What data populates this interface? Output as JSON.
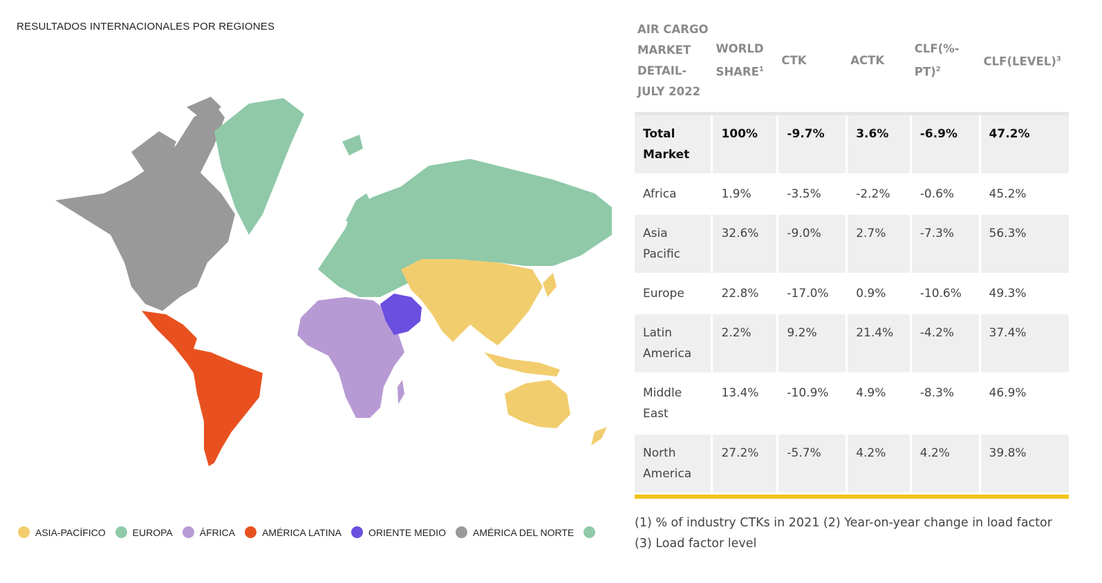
{
  "map": {
    "title": "RESULTADOS INTERNACIONALES POR REGIONES",
    "regions": [
      {
        "name": "ASIA-PACÍFICO",
        "color": "#f2cd6e"
      },
      {
        "name": "EUROPA",
        "color": "#8fc9a8"
      },
      {
        "name": "ÁFRICA",
        "color": "#b79ad4"
      },
      {
        "name": "AMÉRICA LATINA",
        "color": "#e8511f"
      },
      {
        "name": "ORIENTE MEDIO",
        "color": "#6a4fe0"
      },
      {
        "name": "AMÉRICA DEL NORTE",
        "color": "#999999"
      }
    ],
    "extra_dot_color": "#8fc9a8"
  },
  "chart_data": {
    "type": "table",
    "headers": [
      "AIR CARGO MARKET DETAIL-JULY 2022",
      "WORLD SHARE",
      "CTK",
      "ACTK",
      "CLF(%-PT)",
      "CLF(LEVEL)"
    ],
    "header_sups": [
      "",
      "1",
      "",
      "",
      "2",
      "3"
    ],
    "rows": [
      [
        "Total Market",
        "100%",
        "-9.7%",
        "3.6%",
        "-6.9%",
        "47.2%"
      ],
      [
        "Africa",
        "1.9%",
        "-3.5%",
        "-2.2%",
        "-0.6%",
        "45.2%"
      ],
      [
        "Asia Pacific",
        "32.6%",
        "-9.0%",
        "2.7%",
        "-7.3%",
        "56.3%"
      ],
      [
        "Europe",
        "22.8%",
        "-17.0%",
        "0.9%",
        "-10.6%",
        "49.3%"
      ],
      [
        "Latin America",
        "2.2%",
        "9.2%",
        "21.4%",
        "-4.2%",
        "37.4%"
      ],
      [
        "Middle East",
        "13.4%",
        "-10.9%",
        "4.9%",
        "-8.3%",
        "46.9%"
      ],
      [
        "North America",
        "27.2%",
        "-5.7%",
        "4.2%",
        "4.2%",
        "39.8%"
      ]
    ],
    "accent_color": "#f0c419"
  },
  "footnote": "(1) % of industry CTKs in 2021     (2) Year-on-year change in load factor     (3) Load factor level"
}
